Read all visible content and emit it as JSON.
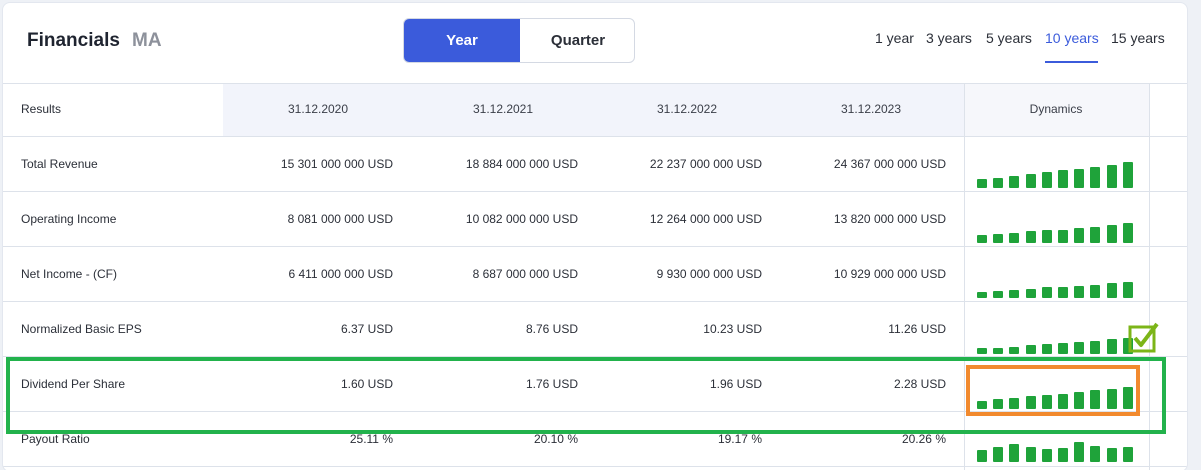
{
  "header": {
    "title": "Financials",
    "ticker": "MA",
    "toggle": {
      "year": "Year",
      "quarter": "Quarter",
      "selected": "Year"
    },
    "periods": [
      "1 year",
      "3 years",
      "5 years",
      "10 years",
      "15 years"
    ],
    "active_period": "10 years"
  },
  "table": {
    "columns": [
      "Results",
      "31.12.2020",
      "31.12.2021",
      "31.12.2022",
      "31.12.2023",
      "Dynamics"
    ],
    "rows": [
      {
        "label": "Total Revenue",
        "values": [
          "15 301 000 000 USD",
          "18 884 000 000 USD",
          "22 237 000 000 USD",
          "24 367 000 000 USD"
        ],
        "trend": [
          0.35,
          0.38,
          0.44,
          0.52,
          0.6,
          0.66,
          0.69,
          0.76,
          0.86,
          0.95
        ]
      },
      {
        "label": "Operating Income",
        "values": [
          "8 081 000 000 USD",
          "10 082 000 000 USD",
          "12 264 000 000 USD",
          "13 820 000 000 USD"
        ],
        "trend": [
          0.38,
          0.42,
          0.48,
          0.55,
          0.62,
          0.64,
          0.7,
          0.78,
          0.88,
          0.95
        ]
      },
      {
        "label": "Net Income - (CF)",
        "values": [
          "6 411 000 000 USD",
          "8 687 000 000 USD",
          "9 930 000 000 USD",
          "10 929 000 000 USD"
        ],
        "trend": [
          0.36,
          0.4,
          0.46,
          0.55,
          0.62,
          0.64,
          0.7,
          0.78,
          0.86,
          0.95
        ]
      },
      {
        "label": "Normalized Basic EPS",
        "values": [
          "6.37 USD",
          "8.76 USD",
          "10.23 USD",
          "11.26 USD"
        ],
        "trend": [
          0.34,
          0.38,
          0.44,
          0.52,
          0.6,
          0.63,
          0.7,
          0.78,
          0.86,
          0.95
        ]
      },
      {
        "label": "Dividend Per Share",
        "values": [
          "1.60 USD",
          "1.76 USD",
          "1.96 USD",
          "2.28 USD"
        ],
        "trend": [
          0.36,
          0.42,
          0.48,
          0.55,
          0.62,
          0.66,
          0.74,
          0.82,
          0.88,
          0.95
        ]
      },
      {
        "label": "Payout Ratio",
        "values": [
          "25.11 %",
          "20.10 %",
          "19.17 %",
          "20.26 %"
        ],
        "trend": [
          0.55,
          0.72,
          0.85,
          0.7,
          0.6,
          0.68,
          0.95,
          0.78,
          0.68,
          0.72
        ]
      }
    ]
  },
  "colors": {
    "accent": "#3b5bdb",
    "bar": "#1fa33a",
    "highlight_row": "#22b24c",
    "highlight_cell": "#f28a2e"
  },
  "annotations": {
    "checkmark_icon": "check-box-icon"
  }
}
